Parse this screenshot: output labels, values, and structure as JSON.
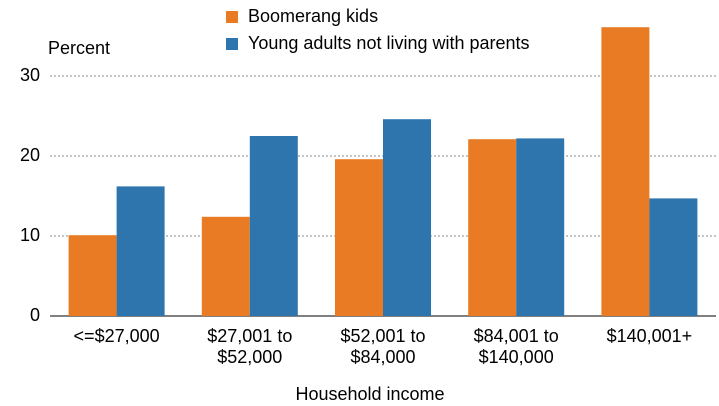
{
  "chart_data": {
    "type": "bar",
    "y_label": "Percent",
    "x_label": "Household income",
    "categories": [
      "<=$27,000",
      "$27,001 to $52,000",
      "$52,001 to $84,000",
      "$84,001 to $140,000",
      "$140,001+"
    ],
    "series": [
      {
        "name": "Boomerang kids",
        "color": "#e87b23",
        "values": [
          10.1,
          12.4,
          19.6,
          22.1,
          36.1
        ]
      },
      {
        "name": "Young adults not living with parents",
        "color": "#2e75ad",
        "values": [
          16.2,
          22.5,
          24.6,
          22.2,
          14.7
        ]
      }
    ],
    "ylim": [
      0,
      37
    ],
    "yticks": [
      0,
      10,
      20,
      30
    ],
    "grid": true
  }
}
